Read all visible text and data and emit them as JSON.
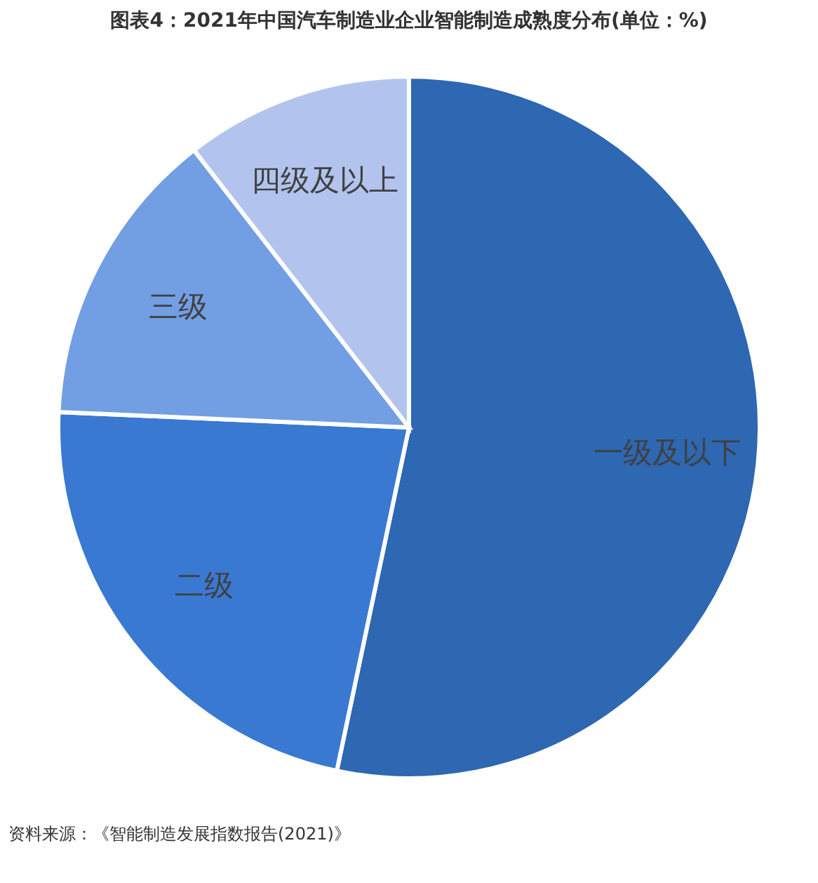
{
  "chart_data": {
    "type": "pie",
    "title": "图表4：2021年中国汽车制造业企业智能制造成熟度分布(单位：%)",
    "categories": [
      "一级及以下",
      "二级",
      "三级",
      "四级及以上"
    ],
    "values": [
      53.3,
      22.4,
      13.8,
      10.5
    ],
    "colors": [
      "#2e67b2",
      "#3a79d2",
      "#729ee3",
      "#b2c4ee"
    ],
    "legend": false,
    "annotations": [
      "资料来源：《智能制造发展指数报告(2021)》"
    ]
  }
}
